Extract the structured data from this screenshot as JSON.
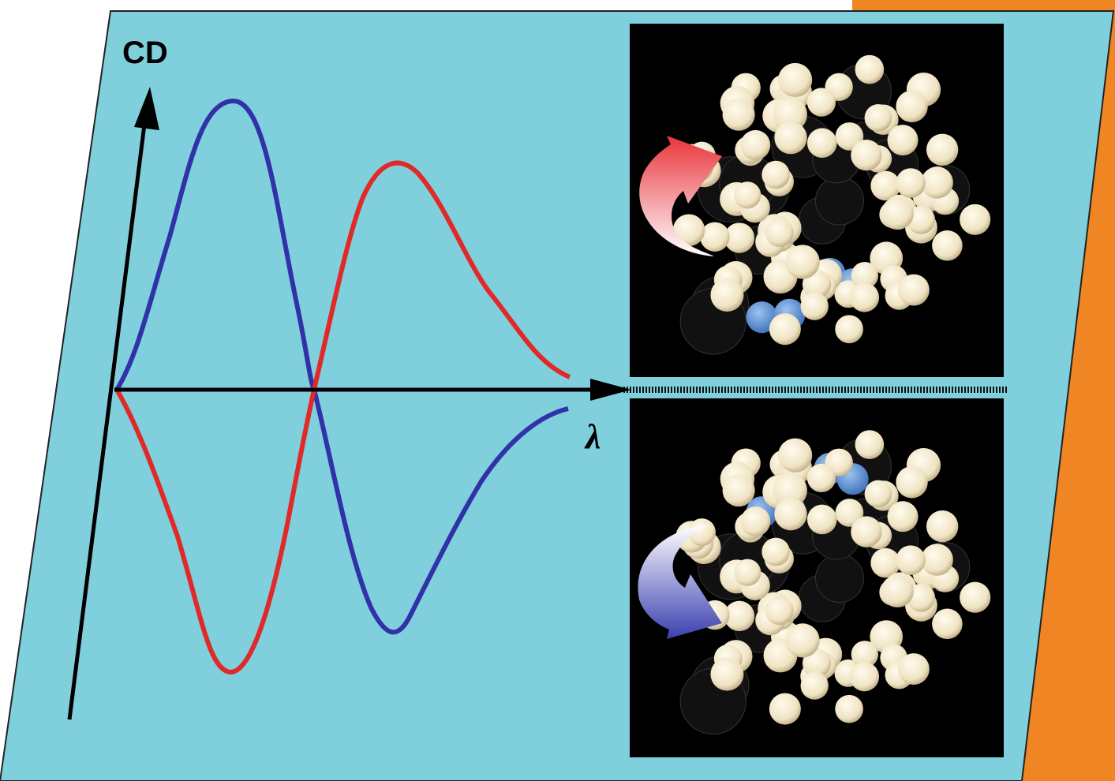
{
  "axis_labels": {
    "y": "CD",
    "x": "λ"
  }
}
